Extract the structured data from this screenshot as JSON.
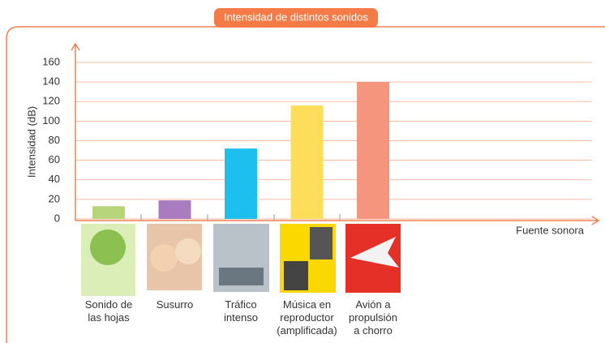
{
  "chart_data": {
    "type": "bar",
    "title": "Intensidad de distintos sonidos",
    "y_label": "Intensidad (dB)",
    "x_label": "Fuente sonora",
    "categories": [
      "Sonido de\nlas hojas",
      "Susurro",
      "Tráfico\nintenso",
      "Música en\nreproductor\n(amplificada)",
      "Avión a\npropulsión\na chorro"
    ],
    "values": [
      13,
      19,
      72,
      116,
      140
    ],
    "colors": [
      "#b7d67a",
      "#a97cbf",
      "#1dbfee",
      "#fedd5a",
      "#f6957e"
    ],
    "ylim": [
      0,
      160
    ],
    "yticks": [
      0,
      20,
      40,
      60,
      80,
      100,
      120,
      140,
      160
    ],
    "grid": true
  }
}
